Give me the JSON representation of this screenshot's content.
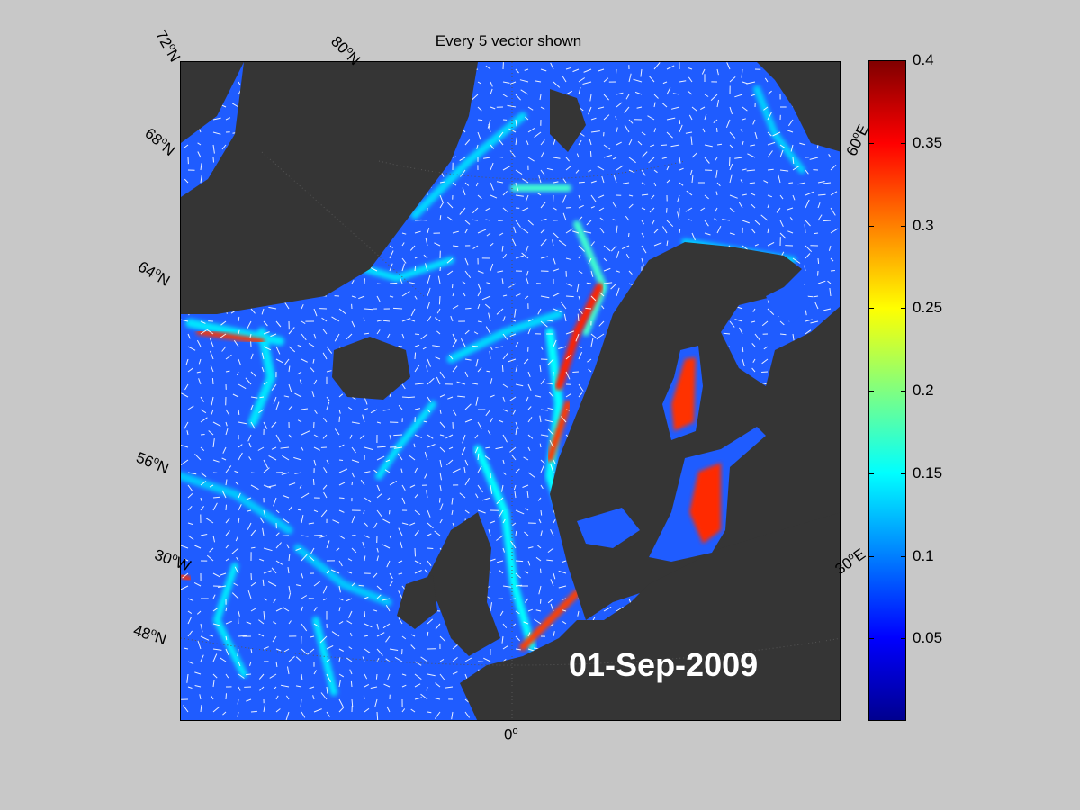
{
  "title": "Every 5 vector shown",
  "date": "01-Sep-2009",
  "map_labels": {
    "lat72": "72",
    "lat68": "68",
    "lat64": "64",
    "lat56": "56",
    "lat48": "48",
    "lon80": "80",
    "lon30w": "30",
    "lon30e": "30",
    "lon60e": "60",
    "lon0": "0",
    "north": "N",
    "west": "W",
    "east": "E",
    "deg": "o"
  },
  "colorbar": {
    "ticks": [
      "0.4",
      "0.35",
      "0.3",
      "0.25",
      "0.2",
      "0.15",
      "0.1",
      "0.05"
    ],
    "tick_values": [
      0.4,
      0.35,
      0.3,
      0.25,
      0.2,
      0.15,
      0.1,
      0.05
    ],
    "range": [
      0,
      0.4
    ],
    "colormap": [
      "#00008f",
      "#0000ff",
      "#0080ff",
      "#00ffff",
      "#80ff80",
      "#ffff00",
      "#ff8000",
      "#ff0000",
      "#800000"
    ]
  },
  "colors": {
    "land": "#353535",
    "ocean_low": "#1f5cff",
    "ocean_mid": "#00e0ff",
    "ocean_high": "#ff2a00",
    "vectors": "#ffffff"
  }
}
